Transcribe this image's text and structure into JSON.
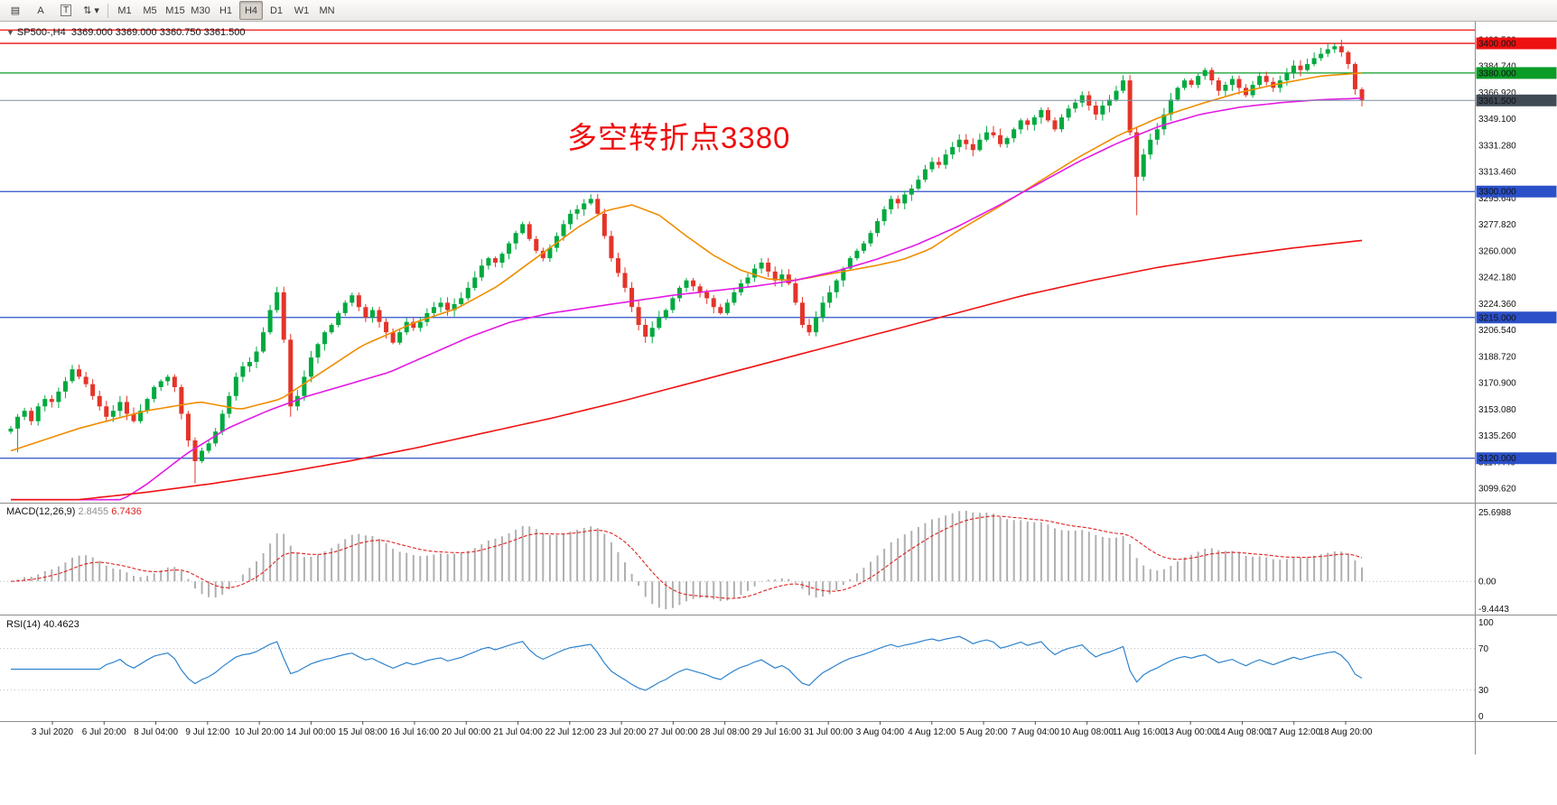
{
  "header": {
    "collapse_glyph": "▼",
    "symbol_line": "SP500-,H4  3369.000 3369.000 3360.750 3361.500"
  },
  "toolbar": {
    "tools": [
      {
        "name": "charts-grid-icon",
        "glyph": "▤"
      },
      {
        "name": "annotation-a-button",
        "glyph": "A"
      },
      {
        "name": "text-box-tool-button",
        "glyph": "T",
        "boxed": true
      },
      {
        "name": "scale-dropdown-button",
        "glyph": "⇅ ▾"
      }
    ],
    "timeframes": [
      "M1",
      "M5",
      "M15",
      "M30",
      "H1",
      "H4",
      "D1",
      "W1",
      "MN"
    ],
    "active_timeframe": "H4"
  },
  "chart_data": {
    "type": "candlestick",
    "symbol": "SP500-",
    "timeframe": "H4",
    "ohlc": {
      "open": "3369.000",
      "high": "3369.000",
      "low": "3360.750",
      "close": "3361.500"
    },
    "first_open": 3138,
    "up_color": "#00a93f",
    "down_color": "#e43429",
    "closes": [
      3140,
      3148,
      3152,
      3145,
      3155,
      3160,
      3158,
      3165,
      3172,
      3180,
      3175,
      3170,
      3162,
      3155,
      3148,
      3152,
      3158,
      3150,
      3145,
      3152,
      3160,
      3168,
      3172,
      3175,
      3168,
      3150,
      3132,
      3118,
      3125,
      3130,
      3138,
      3150,
      3162,
      3175,
      3182,
      3185,
      3192,
      3205,
      3220,
      3232,
      3200,
      3155,
      3162,
      3175,
      3188,
      3197,
      3205,
      3210,
      3218,
      3225,
      3230,
      3222,
      3215,
      3220,
      3212,
      3205,
      3198,
      3205,
      3212,
      3208,
      3212,
      3218,
      3222,
      3225,
      3220,
      3224,
      3228,
      3235,
      3242,
      3250,
      3255,
      3252,
      3258,
      3265,
      3272,
      3278,
      3268,
      3260,
      3255,
      3262,
      3270,
      3278,
      3285,
      3288,
      3292,
      3295,
      3285,
      3270,
      3255,
      3245,
      3235,
      3222,
      3210,
      3202,
      3208,
      3215,
      3220,
      3228,
      3235,
      3240,
      3236,
      3232,
      3228,
      3222,
      3218,
      3225,
      3232,
      3238,
      3242,
      3248,
      3252,
      3246,
      3240,
      3244,
      3238,
      3225,
      3210,
      3205,
      3215,
      3225,
      3232,
      3240,
      3248,
      3255,
      3260,
      3265,
      3272,
      3280,
      3288,
      3295,
      3292,
      3298,
      3302,
      3308,
      3315,
      3320,
      3318,
      3325,
      3330,
      3335,
      3332,
      3328,
      3335,
      3340,
      3338,
      3332,
      3336,
      3342,
      3348,
      3345,
      3350,
      3355,
      3348,
      3342,
      3350,
      3356,
      3360,
      3365,
      3358,
      3352,
      3358,
      3362,
      3368,
      3375,
      3340,
      3310,
      3325,
      3335,
      3342,
      3352,
      3362,
      3370,
      3375,
      3372,
      3378,
      3382,
      3375,
      3368,
      3372,
      3376,
      3370,
      3365,
      3372,
      3378,
      3374,
      3370,
      3375,
      3380,
      3385,
      3382,
      3386,
      3390,
      3393,
      3396,
      3398,
      3394,
      3386,
      3369,
      3361.5
    ],
    "wick_overrides": {
      "1": {
        "low": 3124
      },
      "27": {
        "low": 3103
      },
      "41": {
        "low": 3148
      },
      "165": {
        "low": 3284
      },
      "194": {
        "high": 3400
      }
    },
    "moving_averages": [
      {
        "name": "fast-ma-line",
        "color": "#ef8d00",
        "anchors": [
          [
            0,
            3125
          ],
          [
            0.05,
            3140
          ],
          [
            0.1,
            3152
          ],
          [
            0.14,
            3158
          ],
          [
            0.17,
            3153
          ],
          [
            0.2,
            3160
          ],
          [
            0.23,
            3178
          ],
          [
            0.26,
            3196
          ],
          [
            0.3,
            3212
          ],
          [
            0.33,
            3221
          ],
          [
            0.36,
            3236
          ],
          [
            0.39,
            3256
          ],
          [
            0.42,
            3276
          ],
          [
            0.44,
            3287
          ],
          [
            0.46,
            3291
          ],
          [
            0.48,
            3284
          ],
          [
            0.5,
            3270
          ],
          [
            0.52,
            3257
          ],
          [
            0.54,
            3247
          ],
          [
            0.56,
            3241
          ],
          [
            0.58,
            3240
          ],
          [
            0.61,
            3245
          ],
          [
            0.64,
            3250
          ],
          [
            0.66,
            3254
          ],
          [
            0.68,
            3261
          ],
          [
            0.7,
            3273
          ],
          [
            0.73,
            3289
          ],
          [
            0.76,
            3306
          ],
          [
            0.79,
            3323
          ],
          [
            0.82,
            3338
          ],
          [
            0.85,
            3350
          ],
          [
            0.88,
            3359
          ],
          [
            0.91,
            3367
          ],
          [
            0.94,
            3373
          ],
          [
            0.97,
            3378
          ],
          [
            1,
            3380
          ]
        ]
      },
      {
        "name": "mid-ma-line",
        "color": "#e31ae3",
        "anchors": [
          [
            0,
            3078
          ],
          [
            0.07,
            3085
          ],
          [
            0.1,
            3102
          ],
          [
            0.13,
            3123
          ],
          [
            0.16,
            3140
          ],
          [
            0.19,
            3152
          ],
          [
            0.22,
            3162
          ],
          [
            0.25,
            3170
          ],
          [
            0.28,
            3178
          ],
          [
            0.31,
            3190
          ],
          [
            0.34,
            3202
          ],
          [
            0.37,
            3212
          ],
          [
            0.4,
            3218
          ],
          [
            0.43,
            3222
          ],
          [
            0.46,
            3226
          ],
          [
            0.49,
            3230
          ],
          [
            0.52,
            3233
          ],
          [
            0.55,
            3236
          ],
          [
            0.58,
            3240
          ],
          [
            0.61,
            3246
          ],
          [
            0.64,
            3254
          ],
          [
            0.67,
            3264
          ],
          [
            0.7,
            3276
          ],
          [
            0.73,
            3290
          ],
          [
            0.76,
            3305
          ],
          [
            0.79,
            3320
          ],
          [
            0.82,
            3333
          ],
          [
            0.85,
            3344
          ],
          [
            0.88,
            3352
          ],
          [
            0.91,
            3357
          ],
          [
            0.94,
            3360
          ],
          [
            0.97,
            3362
          ],
          [
            1,
            3363
          ]
        ]
      },
      {
        "name": "slow-ma-line",
        "color": "#ef1212",
        "anchors": [
          [
            0,
            3088
          ],
          [
            0.05,
            3092
          ],
          [
            0.1,
            3097
          ],
          [
            0.15,
            3103
          ],
          [
            0.2,
            3110
          ],
          [
            0.25,
            3118
          ],
          [
            0.3,
            3127
          ],
          [
            0.35,
            3137
          ],
          [
            0.4,
            3147
          ],
          [
            0.45,
            3158
          ],
          [
            0.5,
            3170
          ],
          [
            0.55,
            3182
          ],
          [
            0.6,
            3194
          ],
          [
            0.65,
            3206
          ],
          [
            0.7,
            3218
          ],
          [
            0.75,
            3230
          ],
          [
            0.8,
            3240
          ],
          [
            0.85,
            3249
          ],
          [
            0.9,
            3256
          ],
          [
            0.95,
            3262
          ],
          [
            1,
            3267
          ]
        ]
      }
    ],
    "levels": [
      {
        "value": 3409,
        "label": "",
        "color": "#ee1111"
      },
      {
        "value": 3400,
        "label": "3400.000",
        "color": "#ee1111"
      },
      {
        "value": 3380,
        "label": "3380.000",
        "color": "#0b9b27"
      },
      {
        "value": 3300,
        "label": "3300.000",
        "color": "#2b50c8"
      },
      {
        "value": 3215,
        "label": "3215.000",
        "color": "#2b50c8"
      },
      {
        "value": 3120,
        "label": "3120.000",
        "color": "#2b50c8"
      }
    ],
    "current_price": {
      "value": 3361.5,
      "label": "3361.500",
      "line_color": "#7c90a6",
      "badge_color": "#3f4a55"
    },
    "price_ticks": [
      "3402.560",
      "3384.740",
      "3366.920",
      "3349.100",
      "3331.280",
      "3313.460",
      "3295.640",
      "3277.820",
      "3260.000",
      "3242.180",
      "3224.360",
      "3206.540",
      "3188.720",
      "3170.900",
      "3153.080",
      "3135.260",
      "3117.440",
      "3099.620"
    ],
    "time_labels": [
      "3 Jul 2020",
      "6 Jul 20:00",
      "8 Jul 04:00",
      "9 Jul 12:00",
      "10 Jul 20:00",
      "14 Jul 00:00",
      "15 Jul 08:00",
      "16 Jul 16:00",
      "20 Jul 00:00",
      "21 Jul 04:00",
      "22 Jul 12:00",
      "23 Jul 20:00",
      "27 Jul 00:00",
      "28 Jul 08:00",
      "29 Jul 16:00",
      "31 Jul 00:00",
      "3 Aug 04:00",
      "4 Aug 12:00",
      "5 Aug 20:00",
      "7 Aug 04:00",
      "10 Aug 08:00",
      "11 Aug 16:00",
      "13 Aug 00:00",
      "14 Aug 08:00",
      "17 Aug 12:00",
      "18 Aug 20:00"
    ],
    "macd": {
      "label": "MACD(12,26,9)",
      "params": [
        12,
        26,
        9
      ],
      "main_value": "2.8455",
      "signal_value": "6.7436",
      "scale_max_label": "25.6988",
      "scale_zero_label": "0.00",
      "scale_min_label": "-9.4443",
      "hist_color": "#b0b0b0",
      "signal_color": "#e02020"
    },
    "rsi": {
      "label": "RSI(14)",
      "period": 14,
      "value": "40.4623",
      "scale_labels": [
        "100",
        "70",
        "30",
        "0"
      ],
      "levels": [
        70,
        30
      ],
      "color": "#2f83cc"
    },
    "annotation": {
      "text": "多空转折点3380",
      "color": "#ef0d0d"
    }
  }
}
